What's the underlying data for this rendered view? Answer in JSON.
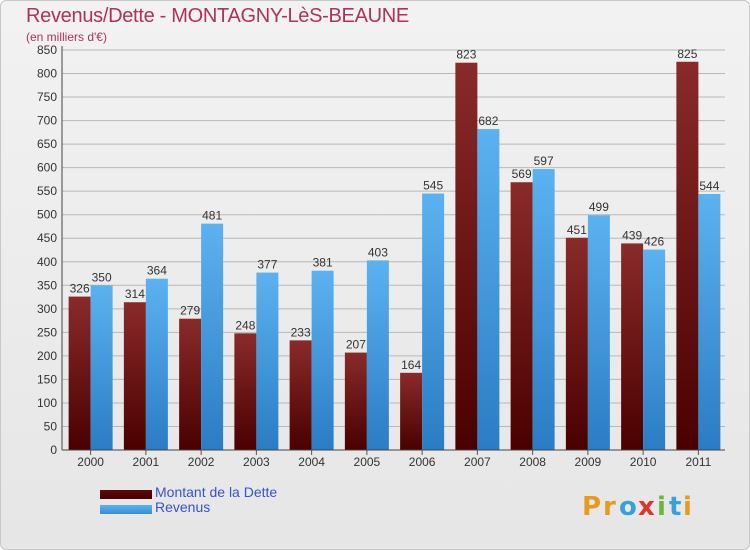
{
  "page": {
    "title": "Revenus/Dette - MONTAGNY-LèS-BEAUNE",
    "subtitle": "(en milliers d'€)"
  },
  "colors": {
    "debt": "#7a1a1a",
    "debt_dark": "#4a0000",
    "revenue": "#55aaea",
    "revenue_dark": "#2e80c8",
    "title": "#b03060",
    "grid": "#b8b8b8"
  },
  "chart_data": {
    "type": "bar",
    "categories": [
      "2000",
      "2001",
      "2002",
      "2003",
      "2004",
      "2005",
      "2006",
      "2007",
      "2008",
      "2009",
      "2010",
      "2011"
    ],
    "series": [
      {
        "name": "Montant de la Dette",
        "values": [
          326,
          314,
          279,
          248,
          233,
          207,
          164,
          823,
          569,
          451,
          439,
          825
        ]
      },
      {
        "name": "Revenus",
        "values": [
          350,
          364,
          481,
          377,
          381,
          403,
          545,
          682,
          597,
          499,
          426,
          544
        ]
      }
    ],
    "ylim": [
      0,
      850
    ],
    "yticks": [
      0,
      50,
      100,
      150,
      200,
      250,
      300,
      350,
      400,
      450,
      500,
      550,
      600,
      650,
      700,
      750,
      800,
      850
    ],
    "grid": true,
    "legend_position": "bottom-left"
  },
  "legend": {
    "items": [
      {
        "label": "Montant de la Dette"
      },
      {
        "label": "Revenus"
      }
    ]
  },
  "logo": {
    "text": "Proxiti",
    "letters": [
      "P",
      "r",
      "o",
      "x",
      "i",
      "t",
      "i"
    ],
    "letter_colors": [
      "#e89a1e",
      "#e89a1e",
      "#39a0d8",
      "#e0342a",
      "#6ab83a",
      "#39a0d8",
      "#e89a1e"
    ]
  }
}
